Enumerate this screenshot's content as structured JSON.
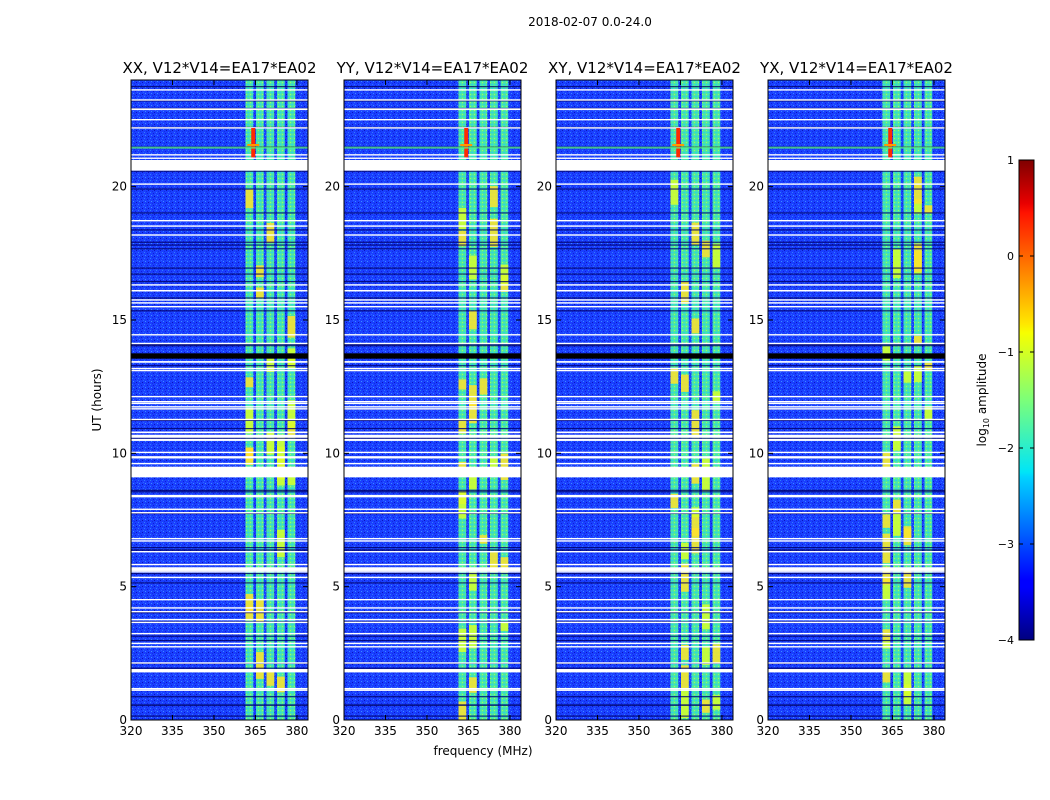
{
  "suptitle": "2018-02-07 0.0-24.0",
  "chart_data": {
    "type": "heatmap",
    "title": "2018-02-07 0.0-24.0",
    "xlabel": "frequency (MHz)",
    "ylabel": "UT (hours)",
    "xlim": [
      320,
      384
    ],
    "ylim": [
      0,
      24
    ],
    "xticks": [
      320,
      335,
      350,
      365,
      380
    ],
    "yticks": [
      0,
      5,
      10,
      15,
      20
    ],
    "xtick_labels": [
      "320",
      "335",
      "350",
      "365",
      "380"
    ],
    "ytick_labels": [
      "0",
      "5",
      "10",
      "15",
      "20"
    ],
    "panels": [
      {
        "title": "XX, V12*V14=EA17*EA02"
      },
      {
        "title": "YY, V12*V14=EA17*EA02"
      },
      {
        "title": "XY, V12*V14=EA17*EA02"
      },
      {
        "title": "YX, V12*V14=EA17*EA02"
      }
    ],
    "strong_signal_band_mhz": [
      361,
      380
    ],
    "colorbar": {
      "label": "log10 amplitude",
      "label_main": "log",
      "label_sub": "10",
      "label_rest": " amplitude",
      "min": -4,
      "max": 1,
      "ticks": [
        -4,
        -3,
        -2,
        -1,
        0,
        1
      ],
      "tick_labels": [
        "−4",
        "−3",
        "−2",
        "−1",
        "0",
        "1"
      ],
      "colormap": "jet"
    }
  }
}
